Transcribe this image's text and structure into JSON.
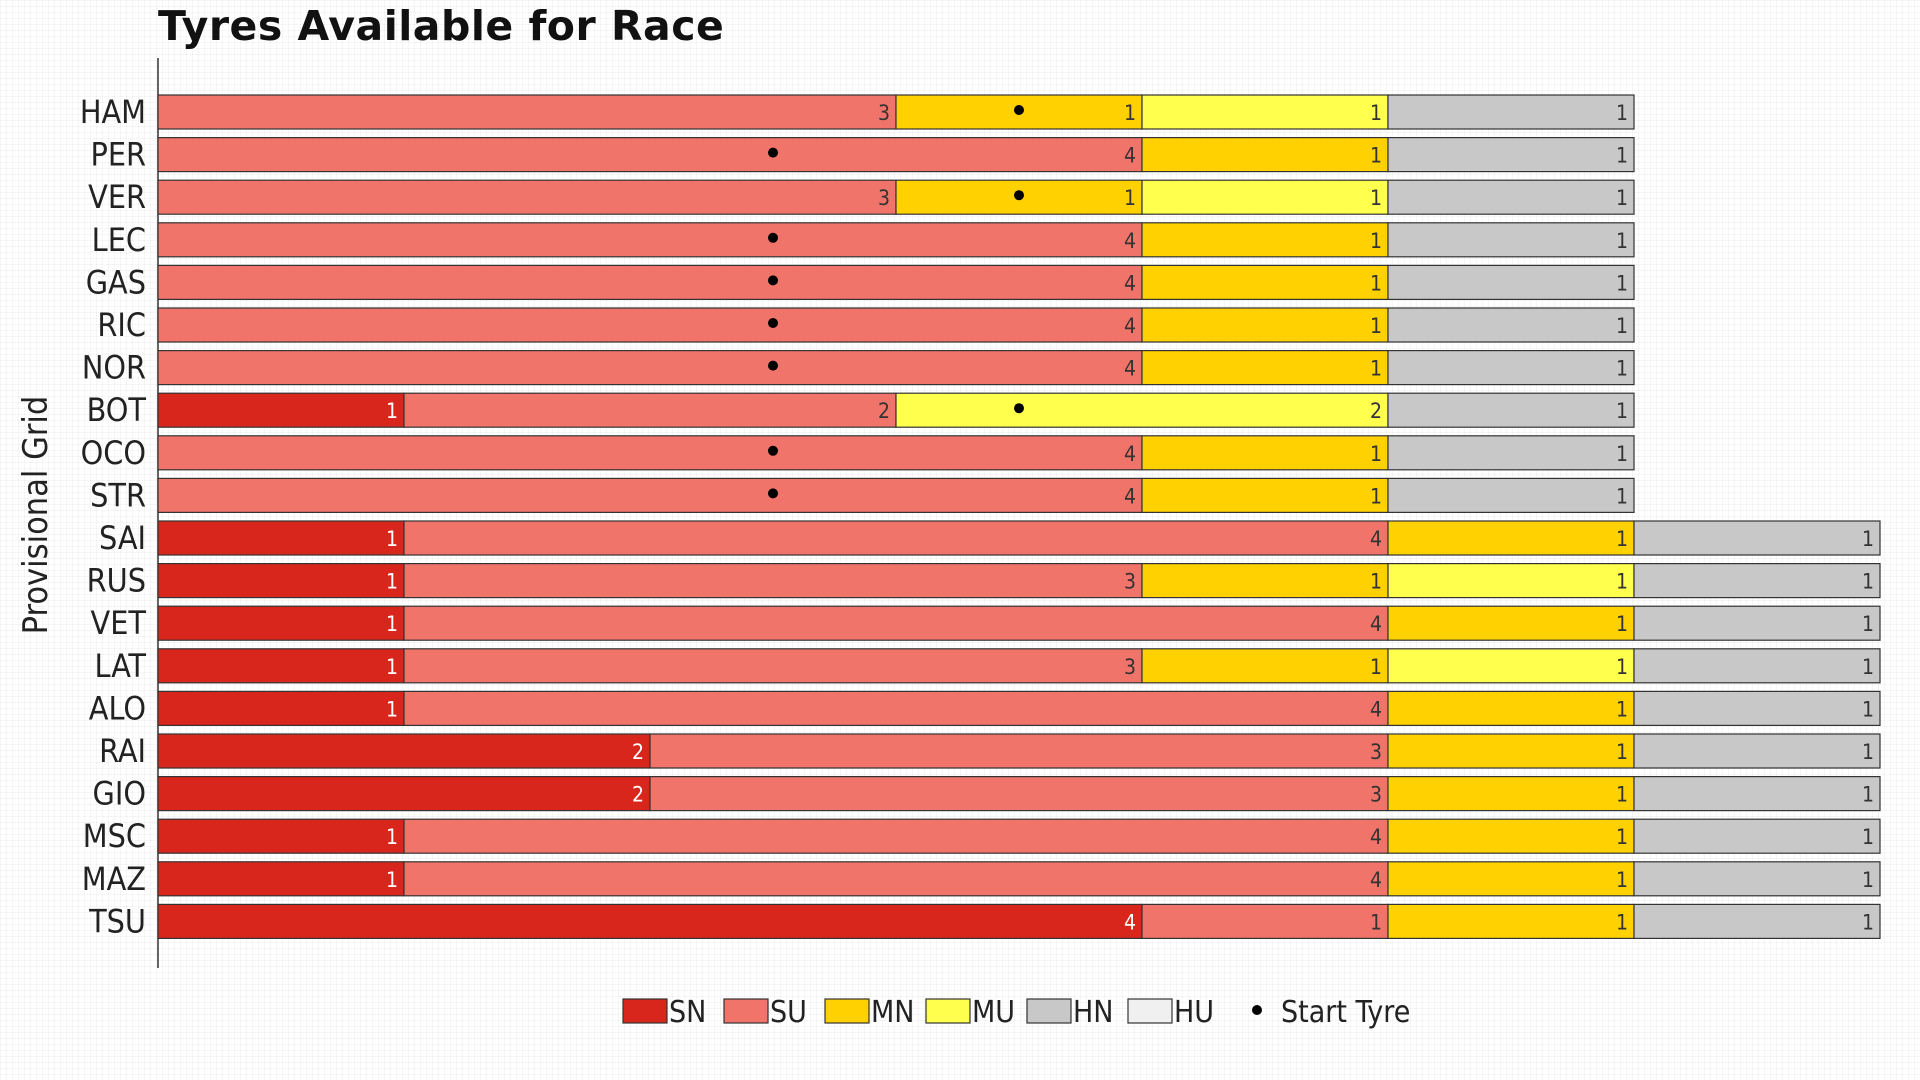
{
  "chart_data": {
    "type": "bar",
    "orientation": "horizontal",
    "stacked": true,
    "title": "Tyres Available for Race",
    "ylabel": "Provisional Grid",
    "xlabel": "",
    "xlim": [
      0,
      14
    ],
    "grid": true,
    "legend_position": "bottom-center",
    "segment_keys": [
      "SN",
      "SU",
      "MN",
      "MU",
      "HN",
      "HU"
    ],
    "colors": {
      "SN": "#d9261c",
      "SU": "#f07469",
      "MN": "#ffd100",
      "MU": "#ffff4d",
      "HN": "#c8c8c8",
      "HU": "#f0f0f0"
    },
    "legend": {
      "entries": [
        "SN",
        "SU",
        "MN",
        "MU",
        "HN",
        "HU"
      ],
      "start_tyre_label": "Start Tyre"
    },
    "drivers": [
      {
        "name": "HAM",
        "segments": [
          {
            "type": "SU",
            "count": 3
          },
          {
            "type": "MN",
            "count": 1
          },
          {
            "type": "MU",
            "count": 1,
            "start": true
          },
          {
            "type": "HN",
            "count": 1
          }
        ]
      },
      {
        "name": "PER",
        "segments": [
          {
            "type": "SU",
            "count": 4,
            "start": true
          },
          {
            "type": "MN",
            "count": 1
          },
          {
            "type": "HN",
            "count": 1
          }
        ]
      },
      {
        "name": "VER",
        "segments": [
          {
            "type": "SU",
            "count": 3
          },
          {
            "type": "MN",
            "count": 1
          },
          {
            "type": "MU",
            "count": 1,
            "start": true
          },
          {
            "type": "HN",
            "count": 1
          }
        ]
      },
      {
        "name": "LEC",
        "segments": [
          {
            "type": "SU",
            "count": 4,
            "start": true
          },
          {
            "type": "MN",
            "count": 1
          },
          {
            "type": "HN",
            "count": 1
          }
        ]
      },
      {
        "name": "GAS",
        "segments": [
          {
            "type": "SU",
            "count": 4,
            "start": true
          },
          {
            "type": "MN",
            "count": 1
          },
          {
            "type": "HN",
            "count": 1
          }
        ]
      },
      {
        "name": "RIC",
        "segments": [
          {
            "type": "SU",
            "count": 4,
            "start": true
          },
          {
            "type": "MN",
            "count": 1
          },
          {
            "type": "HN",
            "count": 1
          }
        ]
      },
      {
        "name": "NOR",
        "segments": [
          {
            "type": "SU",
            "count": 4,
            "start": true
          },
          {
            "type": "MN",
            "count": 1
          },
          {
            "type": "HN",
            "count": 1
          }
        ]
      },
      {
        "name": "BOT",
        "segments": [
          {
            "type": "SN",
            "count": 1
          },
          {
            "type": "SU",
            "count": 2
          },
          {
            "type": "MU",
            "count": 2,
            "start": true
          },
          {
            "type": "HN",
            "count": 1
          }
        ]
      },
      {
        "name": "OCO",
        "segments": [
          {
            "type": "SU",
            "count": 4,
            "start": true
          },
          {
            "type": "MN",
            "count": 1
          },
          {
            "type": "HN",
            "count": 1
          }
        ]
      },
      {
        "name": "STR",
        "segments": [
          {
            "type": "SU",
            "count": 4,
            "start": true
          },
          {
            "type": "MN",
            "count": 1
          },
          {
            "type": "HN",
            "count": 1
          }
        ]
      },
      {
        "name": "SAI",
        "segments": [
          {
            "type": "SN",
            "count": 1
          },
          {
            "type": "SU",
            "count": 4
          },
          {
            "type": "MN",
            "count": 1
          },
          {
            "type": "HN",
            "count": 1
          }
        ]
      },
      {
        "name": "RUS",
        "segments": [
          {
            "type": "SN",
            "count": 1
          },
          {
            "type": "SU",
            "count": 3
          },
          {
            "type": "MN",
            "count": 1
          },
          {
            "type": "MU",
            "count": 1
          },
          {
            "type": "HN",
            "count": 1
          }
        ]
      },
      {
        "name": "VET",
        "segments": [
          {
            "type": "SN",
            "count": 1
          },
          {
            "type": "SU",
            "count": 4
          },
          {
            "type": "MN",
            "count": 1
          },
          {
            "type": "HN",
            "count": 1
          }
        ]
      },
      {
        "name": "LAT",
        "segments": [
          {
            "type": "SN",
            "count": 1
          },
          {
            "type": "SU",
            "count": 3
          },
          {
            "type": "MN",
            "count": 1
          },
          {
            "type": "MU",
            "count": 1
          },
          {
            "type": "HN",
            "count": 1
          }
        ]
      },
      {
        "name": "ALO",
        "segments": [
          {
            "type": "SN",
            "count": 1
          },
          {
            "type": "SU",
            "count": 4
          },
          {
            "type": "MN",
            "count": 1
          },
          {
            "type": "HN",
            "count": 1
          }
        ]
      },
      {
        "name": "RAI",
        "segments": [
          {
            "type": "SN",
            "count": 2
          },
          {
            "type": "SU",
            "count": 3
          },
          {
            "type": "MN",
            "count": 1
          },
          {
            "type": "HN",
            "count": 1
          }
        ]
      },
      {
        "name": "GIO",
        "segments": [
          {
            "type": "SN",
            "count": 2
          },
          {
            "type": "SU",
            "count": 3
          },
          {
            "type": "MN",
            "count": 1
          },
          {
            "type": "HN",
            "count": 1
          }
        ]
      },
      {
        "name": "MSC",
        "segments": [
          {
            "type": "SN",
            "count": 1
          },
          {
            "type": "SU",
            "count": 4
          },
          {
            "type": "MN",
            "count": 1
          },
          {
            "type": "HN",
            "count": 1
          }
        ]
      },
      {
        "name": "MAZ",
        "segments": [
          {
            "type": "SN",
            "count": 1
          },
          {
            "type": "SU",
            "count": 4
          },
          {
            "type": "MN",
            "count": 1
          },
          {
            "type": "HN",
            "count": 1
          }
        ]
      },
      {
        "name": "TSU",
        "segments": [
          {
            "type": "SN",
            "count": 4
          },
          {
            "type": "SU",
            "count": 1
          },
          {
            "type": "MN",
            "count": 1
          },
          {
            "type": "HN",
            "count": 1
          }
        ]
      }
    ]
  }
}
